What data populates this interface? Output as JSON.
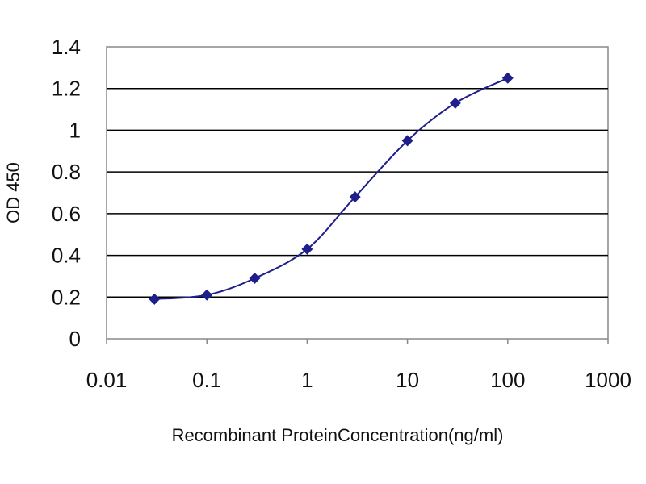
{
  "chart_data": {
    "type": "line",
    "title": "",
    "xlabel": "Recombinant ProteinConcentration(ng/ml)",
    "ylabel": "OD 450",
    "xscale": "log",
    "xlim": [
      0.01,
      1000
    ],
    "ylim": [
      0,
      1.4
    ],
    "xticks": [
      "0.01",
      "0.1",
      "1",
      "10",
      "100",
      "1000"
    ],
    "yticks": [
      "0",
      "0.2",
      "0.4",
      "0.6",
      "0.8",
      "1",
      "1.2",
      "1.4"
    ],
    "grid": "horizontal",
    "legend": "none",
    "series": [
      {
        "x": [
          0.03,
          0.1,
          0.3,
          1,
          3,
          10,
          30,
          100
        ],
        "values": [
          0.19,
          0.21,
          0.29,
          0.43,
          0.68,
          0.95,
          1.13,
          1.25
        ]
      }
    ],
    "colors": {
      "series": "#1f1f8c",
      "grid": "#000000",
      "plot_border": "#888888",
      "background": "#ffffff"
    }
  }
}
